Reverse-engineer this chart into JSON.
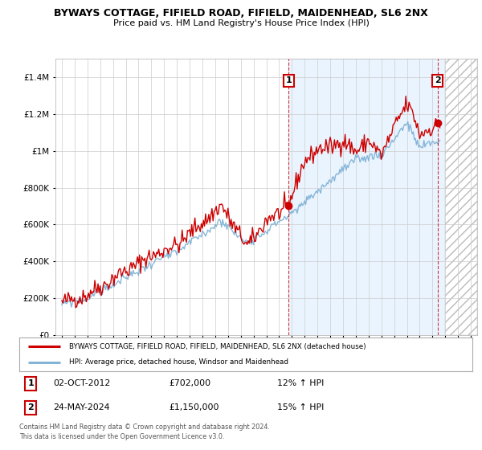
{
  "title": "BYWAYS COTTAGE, FIFIELD ROAD, FIFIELD, MAIDENHEAD, SL6 2NX",
  "subtitle": "Price paid vs. HM Land Registry's House Price Index (HPI)",
  "legend_line1": "BYWAYS COTTAGE, FIFIELD ROAD, FIFIELD, MAIDENHEAD, SL6 2NX (detached house)",
  "legend_line2": "HPI: Average price, detached house, Windsor and Maidenhead",
  "annotation1_date": "02-OCT-2012",
  "annotation1_value": "£702,000",
  "annotation1_hpi": "12% ↑ HPI",
  "annotation1_year": 2012.75,
  "annotation1_price": 702000,
  "annotation2_date": "24-MAY-2024",
  "annotation2_value": "£1,150,000",
  "annotation2_hpi": "15% ↑ HPI",
  "annotation2_year": 2024.4,
  "annotation2_price": 1150000,
  "footer1": "Contains HM Land Registry data © Crown copyright and database right 2024.",
  "footer2": "This data is licensed under the Open Government Licence v3.0.",
  "ylim": [
    0,
    1500000
  ],
  "xlim_start": 1994.5,
  "xlim_end": 2027.5,
  "future_start": 2025.0,
  "red_line_color": "#cc0000",
  "blue_line_color": "#7aafd4",
  "blue_fill_color": "#ddeeff",
  "hatch_color": "#bbbbbb",
  "background_color": "#ffffff",
  "grid_color": "#cccccc"
}
